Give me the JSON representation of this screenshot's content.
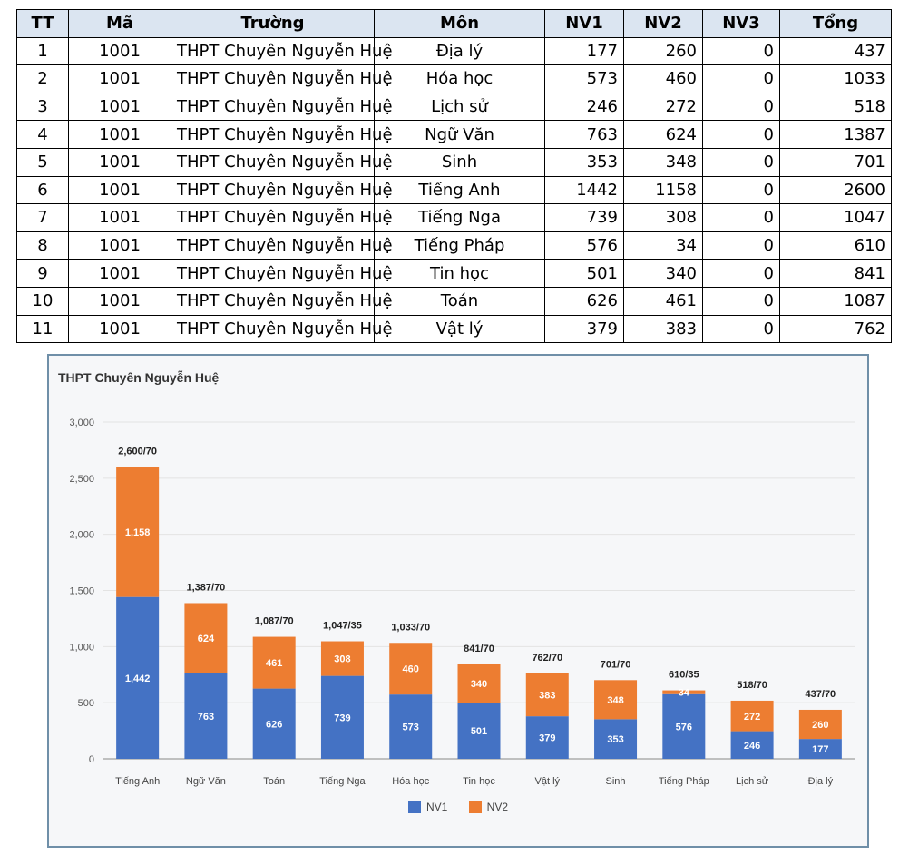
{
  "table": {
    "headers": [
      "TT",
      "Mã",
      "Trường",
      "Môn",
      "NV1",
      "NV2",
      "NV3",
      "Tổng"
    ],
    "rows": [
      [
        "1",
        "1001",
        "THPT Chuyên Nguyễn Huệ",
        "Địa lý",
        "177",
        "260",
        "0",
        "437"
      ],
      [
        "2",
        "1001",
        "THPT Chuyên Nguyễn Huệ",
        "Hóa học",
        "573",
        "460",
        "0",
        "1033"
      ],
      [
        "3",
        "1001",
        "THPT Chuyên Nguyễn Huệ",
        "Lịch sử",
        "246",
        "272",
        "0",
        "518"
      ],
      [
        "4",
        "1001",
        "THPT Chuyên Nguyễn Huệ",
        "Ngữ Văn",
        "763",
        "624",
        "0",
        "1387"
      ],
      [
        "5",
        "1001",
        "THPT Chuyên Nguyễn Huệ",
        "Sinh",
        "353",
        "348",
        "0",
        "701"
      ],
      [
        "6",
        "1001",
        "THPT Chuyên Nguyễn Huệ",
        "Tiếng Anh",
        "1442",
        "1158",
        "0",
        "2600"
      ],
      [
        "7",
        "1001",
        "THPT Chuyên Nguyễn Huệ",
        "Tiếng Nga",
        "739",
        "308",
        "0",
        "1047"
      ],
      [
        "8",
        "1001",
        "THPT Chuyên Nguyễn Huệ",
        "Tiếng Pháp",
        "576",
        "34",
        "0",
        "610"
      ],
      [
        "9",
        "1001",
        "THPT Chuyên Nguyễn Huệ",
        "Tin học",
        "501",
        "340",
        "0",
        "841"
      ],
      [
        "10",
        "1001",
        "THPT Chuyên Nguyễn Huệ",
        "Toán",
        "626",
        "461",
        "0",
        "1087"
      ],
      [
        "11",
        "1001",
        "THPT Chuyên Nguyễn Huệ",
        "Vật lý",
        "379",
        "383",
        "0",
        "762"
      ]
    ]
  },
  "chart_data": {
    "type": "bar",
    "stacked": true,
    "title": "THPT Chuyên Nguyễn Huệ",
    "categories": [
      "Tiếng Anh",
      "Ngữ Văn",
      "Toán",
      "Tiếng Nga",
      "Hóa học",
      "Tin học",
      "Vật lý",
      "Sinh",
      "Tiếng Pháp",
      "Lịch sử",
      "Địa lý"
    ],
    "series": [
      {
        "name": "NV1",
        "color": "#4472c4",
        "values": [
          1442,
          763,
          626,
          739,
          573,
          501,
          379,
          353,
          576,
          246,
          177
        ],
        "labels": [
          "1,442",
          "763",
          "626",
          "739",
          "573",
          "501",
          "379",
          "353",
          "576",
          "246",
          "177"
        ]
      },
      {
        "name": "NV2",
        "color": "#ed7d31",
        "values": [
          1158,
          624,
          461,
          308,
          460,
          340,
          383,
          348,
          34,
          272,
          260
        ],
        "labels": [
          "1,158",
          "624",
          "461",
          "308",
          "460",
          "340",
          "383",
          "348",
          "34",
          "272",
          "260"
        ]
      }
    ],
    "total_labels": [
      "2,600/70",
      "1,387/70",
      "1,087/70",
      "1,047/35",
      "1,033/70",
      "841/70",
      "762/70",
      "701/70",
      "610/35",
      "518/70",
      "437/70"
    ],
    "ylim": [
      0,
      3000
    ],
    "yticks": [
      0,
      500,
      1000,
      1500,
      2000,
      2500,
      3000
    ],
    "ytick_labels": [
      "0",
      "500",
      "1,000",
      "1,500",
      "2,000",
      "2,500",
      "3,000"
    ],
    "grid": true,
    "legend_position": "bottom",
    "xlabel": "",
    "ylabel": ""
  }
}
